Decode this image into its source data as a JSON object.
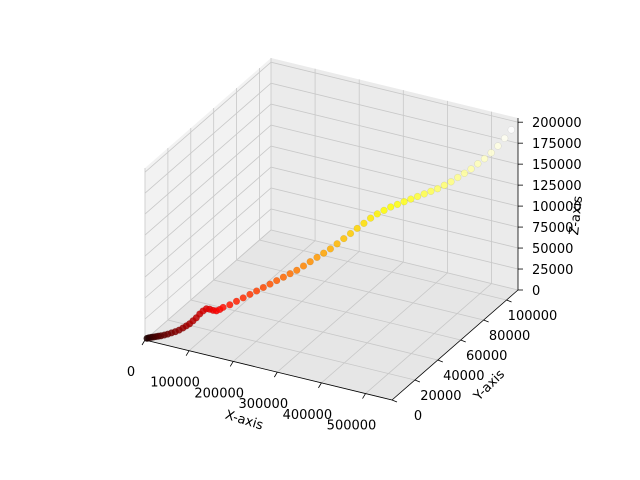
{
  "chart_data": {
    "type": "scatter3d",
    "colormap": "hot",
    "xlabel": "X-axis",
    "ylabel": "Y-axis",
    "zlabel": "Z-axis",
    "xlim": [
      0,
      560000
    ],
    "ylim": [
      0,
      110000
    ],
    "zlim": [
      0,
      205000
    ],
    "x_ticks": [
      0,
      100000,
      200000,
      300000,
      400000,
      500000
    ],
    "y_ticks": [
      0,
      20000,
      40000,
      60000,
      80000,
      100000
    ],
    "z_ticks": [
      0,
      25000,
      50000,
      75000,
      100000,
      125000,
      150000,
      175000,
      200000
    ],
    "x_tick_labels": [
      "0",
      "100000",
      "200000",
      "300000",
      "400000",
      "500000"
    ],
    "y_tick_labels": [
      "0",
      "20000",
      "40000",
      "60000",
      "80000",
      "100000"
    ],
    "z_tick_labels": [
      "0",
      "25000",
      "50000",
      "75000",
      "100000",
      "125000",
      "150000",
      "175000",
      "200000"
    ],
    "grid": true,
    "points": {
      "x": [
        2000,
        5000,
        9000,
        13000,
        17000,
        21000,
        26000,
        31000,
        36000,
        42000,
        48000,
        54000,
        60000,
        65000,
        70000,
        75000,
        80000,
        85000,
        90000,
        95000,
        100000,
        105000,
        110000,
        115000,
        120000,
        130000,
        140000,
        150000,
        160000,
        170000,
        180000,
        190000,
        200000,
        210000,
        220000,
        230000,
        240000,
        250000,
        260000,
        270000,
        280000,
        290000,
        300000,
        310000,
        320000,
        330000,
        340000,
        350000,
        360000,
        370000,
        380000,
        390000,
        400000,
        410000,
        420000,
        430000,
        440000,
        450000,
        460000,
        470000,
        480000,
        490000,
        500000,
        510000,
        520000,
        530000,
        540000,
        550000
      ],
      "y": [
        1000,
        1500,
        2000,
        2500,
        3000,
        3500,
        4000,
        5000,
        6000,
        7000,
        8000,
        9000,
        10000,
        11000,
        12000,
        13000,
        14000,
        15000,
        16000,
        17000,
        18000,
        19000,
        20000,
        21000,
        22000,
        24000,
        26000,
        28000,
        30000,
        32000,
        34000,
        36000,
        38000,
        40000,
        42000,
        44000,
        46000,
        48000,
        50000,
        52000,
        54000,
        56000,
        58000,
        60000,
        62000,
        64000,
        66000,
        68000,
        70000,
        72000,
        74000,
        76000,
        78000,
        80000,
        82000,
        84000,
        86000,
        88000,
        90000,
        92000,
        94000,
        96000,
        98000,
        100000,
        102000,
        104000,
        106000,
        108000
      ],
      "z": [
        1000,
        1500,
        2000,
        2300,
        2700,
        3000,
        3500,
        4000,
        4500,
        5500,
        6500,
        8000,
        10000,
        12000,
        14000,
        17000,
        20000,
        24000,
        27000,
        29000,
        28000,
        26000,
        25000,
        26000,
        28000,
        30000,
        33000,
        36000,
        39000,
        42000,
        45000,
        48000,
        51000,
        54000,
        57000,
        60000,
        64000,
        68000,
        72000,
        76000,
        80000,
        85000,
        90000,
        95000,
        100000,
        105000,
        110000,
        114000,
        117000,
        120000,
        122000,
        124000,
        126000,
        128000,
        130000,
        132000,
        134000,
        137000,
        140000,
        144000,
        148000,
        152000,
        157000,
        162000,
        168000,
        175000,
        183000,
        192000
      ]
    }
  }
}
